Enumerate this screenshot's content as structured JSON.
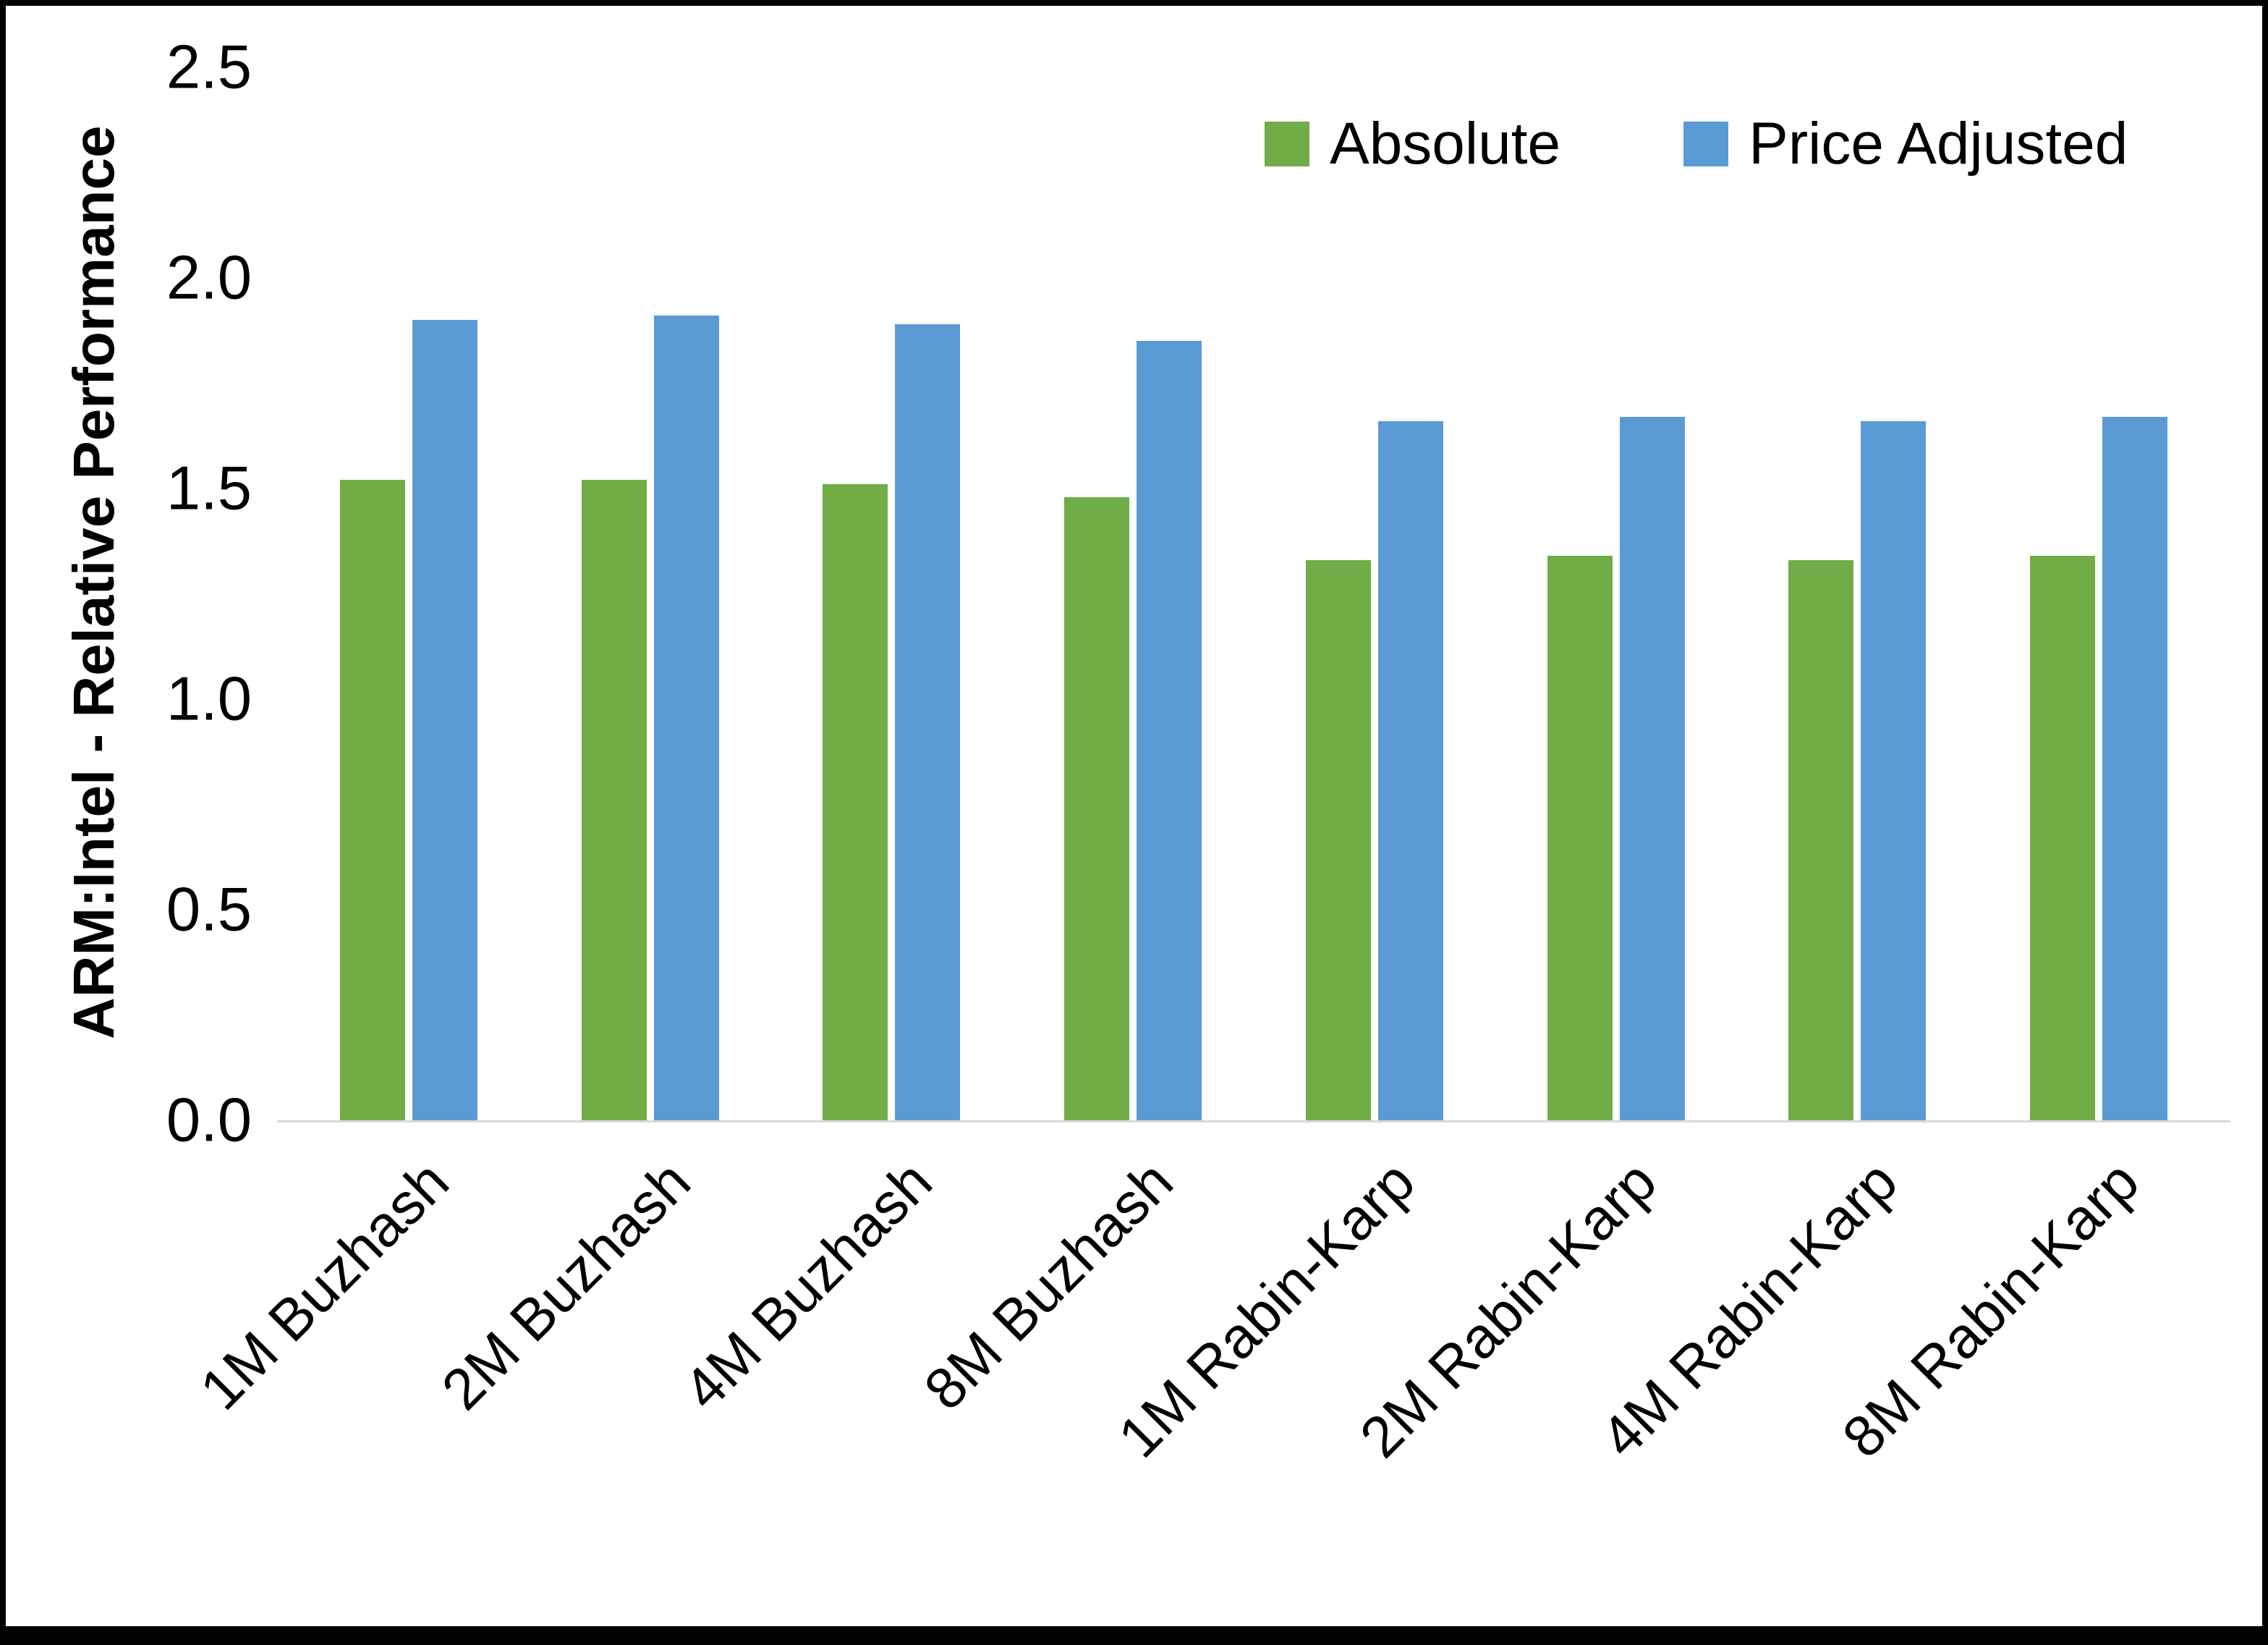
{
  "chart_data": {
    "type": "bar",
    "title": "",
    "xlabel": "",
    "ylabel": "ARM:Intel - Relative Performance",
    "ylim": [
      0,
      2.5
    ],
    "yticks": [
      0.0,
      0.5,
      1.0,
      1.5,
      2.0,
      2.5
    ],
    "ytick_labels": [
      "0.0",
      "0.5",
      "1.0",
      "1.5",
      "2.0",
      "2.5"
    ],
    "grid": false,
    "legend_position": "top-right",
    "categories": [
      "1M Buzhash",
      "2M Buzhash",
      "4M Buzhash",
      "8M Buzhash",
      "1M Rabin-Karp",
      "2M Rabin-Karp",
      "4M Rabin-Karp",
      "8M Rabin-Karp"
    ],
    "series": [
      {
        "name": "Absolute",
        "color": "#70AD47",
        "values": [
          1.52,
          1.52,
          1.51,
          1.48,
          1.33,
          1.34,
          1.33,
          1.34
        ]
      },
      {
        "name": "Price Adjusted",
        "color": "#5B9BD5",
        "values": [
          1.9,
          1.91,
          1.89,
          1.85,
          1.66,
          1.67,
          1.66,
          1.67
        ]
      }
    ]
  }
}
